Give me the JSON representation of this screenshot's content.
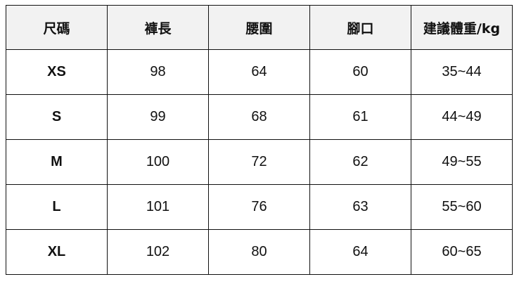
{
  "table": {
    "headers": [
      "尺碼",
      "褲長",
      "腰圍",
      "腳口",
      "建議體重/kg"
    ],
    "rows": [
      [
        "XS",
        "98",
        "64",
        "60",
        "35~44"
      ],
      [
        "S",
        "99",
        "68",
        "61",
        "44~49"
      ],
      [
        "M",
        "100",
        "72",
        "62",
        "49~55"
      ],
      [
        "L",
        "101",
        "76",
        "63",
        "55~60"
      ],
      [
        "XL",
        "102",
        "80",
        "64",
        "60~65"
      ]
    ]
  }
}
